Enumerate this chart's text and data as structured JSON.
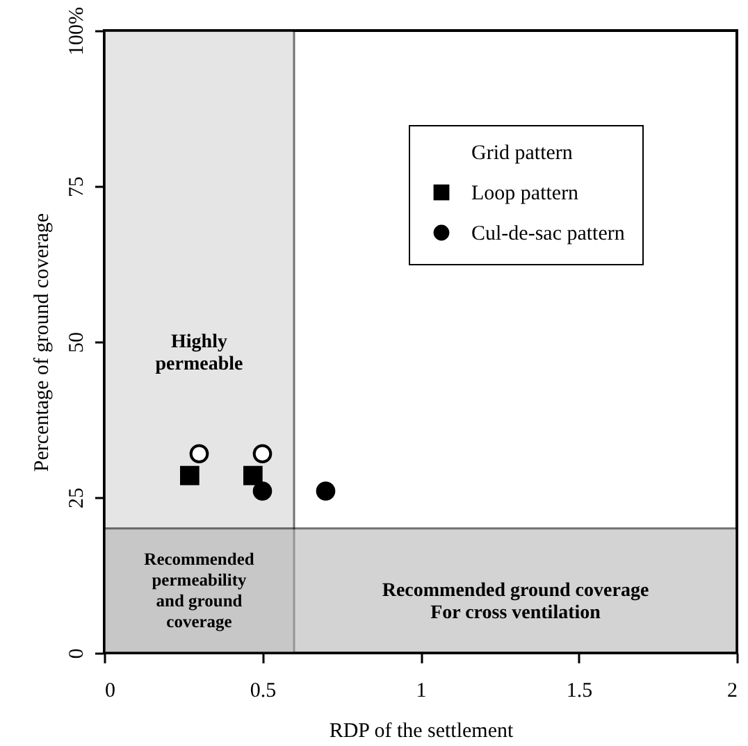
{
  "chart_data": {
    "type": "scatter",
    "xlabel": "RDP of the settlement",
    "ylabel": "Percentage of ground coverage",
    "xlim": [
      0,
      2
    ],
    "xticks": [
      0,
      0.5,
      1,
      1.5,
      2
    ],
    "ylim": [
      0,
      100
    ],
    "yticks": [
      0,
      25,
      50,
      75,
      {
        "value": 100,
        "label": "100%"
      }
    ],
    "series": [
      {
        "name": "Grid pattern",
        "color": "#ffffff",
        "marker": "circle",
        "x": [
          0.3,
          0.5
        ],
        "values": [
          32,
          32
        ]
      },
      {
        "name": "Loop pattern",
        "color": "#000000",
        "marker": "square",
        "x": [
          0.27,
          0.47
        ],
        "values": [
          28.5,
          28.5
        ]
      },
      {
        "name": "Cul-de-sac pattern",
        "color": "#000000",
        "marker": "circle",
        "x": [
          0.5,
          0.7
        ],
        "values": [
          26,
          26
        ]
      }
    ],
    "bands": [
      {
        "axis": "x",
        "from": 0,
        "to": 0.6,
        "label": "Highly\npermeable",
        "color": "#d0d0d0"
      },
      {
        "axis": "y",
        "from": 0,
        "to": 20,
        "label": "Recommended ground coverage\nFor cross ventilation",
        "color": "#b0b0b0"
      }
    ],
    "annotations": [
      "Recommended\npermeability\nand ground\ncoverage"
    ],
    "legend": "top right",
    "grid": false
  }
}
